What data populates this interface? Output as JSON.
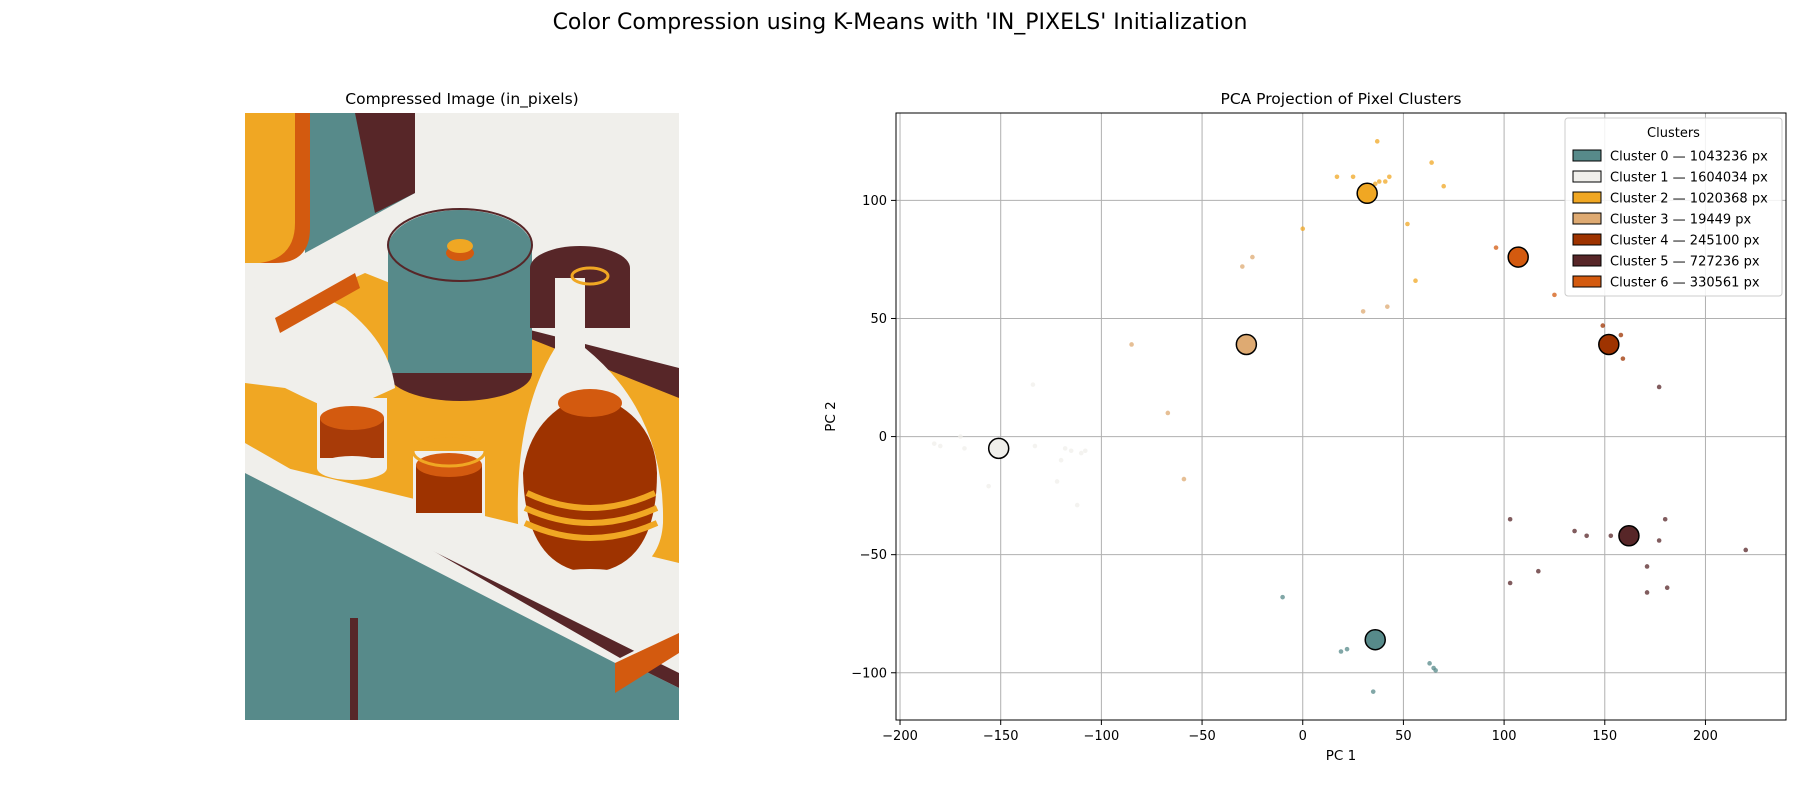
{
  "figure": {
    "suptitle": "Color Compression using K-Means with 'IN_PIXELS' Initialization"
  },
  "image_panel": {
    "title": "Compressed Image (in_pixels)",
    "palette": [
      "#578a8a",
      "#f0efeb",
      "#f0a723",
      "#deaa72",
      "#9e3300",
      "#572628",
      "#d35a0f"
    ]
  },
  "chart_data": {
    "type": "scatter",
    "title": "PCA Projection of Pixel Clusters",
    "xlabel": "PC 1",
    "ylabel": "PC 2",
    "xlim": [
      -202,
      240
    ],
    "ylim": [
      -120,
      137
    ],
    "xticks": [
      -200,
      -150,
      -100,
      -50,
      0,
      50,
      100,
      150,
      200
    ],
    "yticks": [
      -100,
      -50,
      0,
      50,
      100
    ],
    "grid": true,
    "legend": {
      "title": "Clusters",
      "placement": "top-right"
    },
    "series": [
      {
        "name": "Cluster 0 — 1043236 px",
        "color": "#578a8a",
        "center": [
          36,
          -86
        ],
        "points": [
          [
            -10,
            -68
          ],
          [
            19,
            -91
          ],
          [
            22,
            -90
          ],
          [
            35,
            -108
          ],
          [
            63,
            -96
          ],
          [
            65,
            -98
          ],
          [
            66,
            -99
          ]
        ]
      },
      {
        "name": "Cluster 1 — 1604034 px",
        "color": "#f0efeb",
        "center": [
          -151,
          -5
        ],
        "points": [
          [
            -183,
            -3
          ],
          [
            -180,
            -4
          ],
          [
            -170,
            0
          ],
          [
            -168,
            -5
          ],
          [
            -156,
            -21
          ],
          [
            -134,
            22
          ],
          [
            -133,
            -4
          ],
          [
            -122,
            -19
          ],
          [
            -120,
            -10
          ],
          [
            -118,
            -5
          ],
          [
            -115,
            -6
          ],
          [
            -112,
            -29
          ],
          [
            -110,
            -7
          ],
          [
            -108,
            -6
          ]
        ]
      },
      {
        "name": "Cluster 2 — 1020368 px",
        "color": "#f0a723",
        "center": [
          32,
          103
        ],
        "points": [
          [
            0,
            88
          ],
          [
            17,
            110
          ],
          [
            25,
            110
          ],
          [
            36,
            107
          ],
          [
            37,
            125
          ],
          [
            38,
            108
          ],
          [
            41,
            108
          ],
          [
            43,
            110
          ],
          [
            52,
            90
          ],
          [
            56,
            66
          ],
          [
            64,
            116
          ],
          [
            70,
            106
          ]
        ]
      },
      {
        "name": "Cluster 3 — 19449 px",
        "color": "#deaa72",
        "center": [
          -28,
          39
        ],
        "points": [
          [
            -85,
            39
          ],
          [
            -67,
            10
          ],
          [
            -59,
            -18
          ],
          [
            -30,
            72
          ],
          [
            -25,
            76
          ],
          [
            30,
            53
          ],
          [
            42,
            55
          ]
        ]
      },
      {
        "name": "Cluster 4 — 245100 px",
        "color": "#9e3300",
        "center": [
          152,
          39
        ],
        "points": [
          [
            149,
            47
          ],
          [
            153,
            40
          ],
          [
            158,
            43
          ],
          [
            159,
            33
          ]
        ]
      },
      {
        "name": "Cluster 5 — 727236 px",
        "color": "#572628",
        "center": [
          162,
          -42
        ],
        "points": [
          [
            103,
            -35
          ],
          [
            103,
            -62
          ],
          [
            117,
            -57
          ],
          [
            135,
            -40
          ],
          [
            141,
            -42
          ],
          [
            153,
            -42
          ],
          [
            171,
            -55
          ],
          [
            171,
            -66
          ],
          [
            177,
            21
          ],
          [
            177,
            -44
          ],
          [
            180,
            -35
          ],
          [
            181,
            -64
          ],
          [
            220,
            -48
          ]
        ]
      },
      {
        "name": "Cluster 6 — 330561 px",
        "color": "#d35a0f",
        "center": [
          107,
          76
        ],
        "points": [
          [
            96,
            80
          ],
          [
            125,
            60
          ]
        ]
      }
    ]
  }
}
